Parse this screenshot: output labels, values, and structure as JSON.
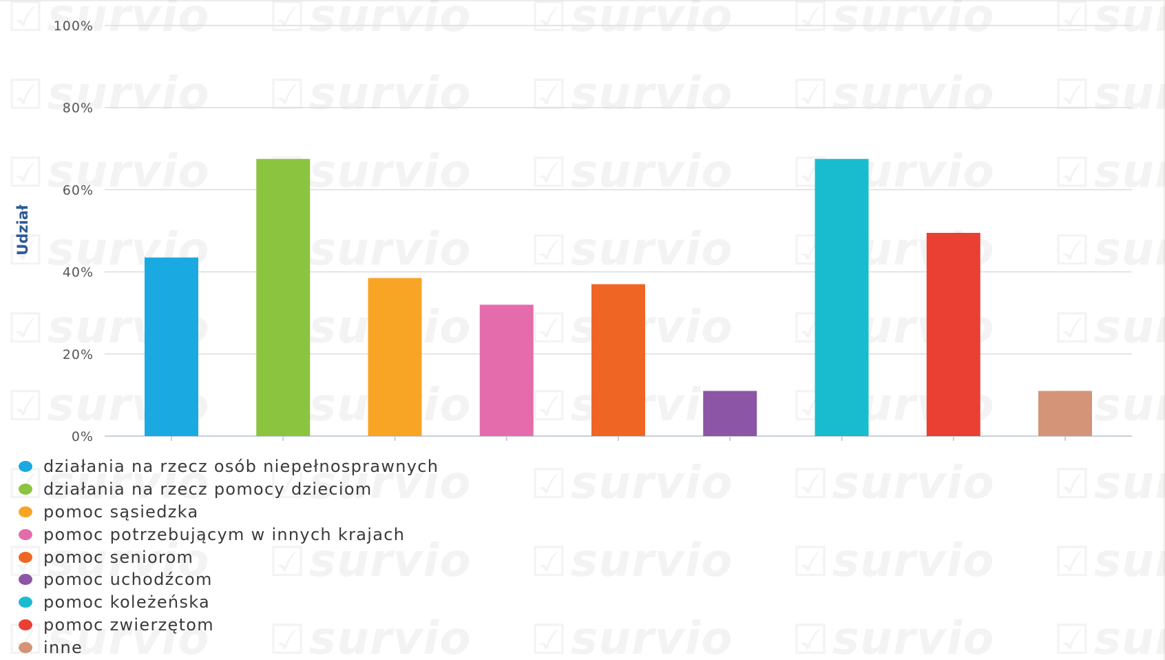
{
  "chart_data": {
    "type": "bar",
    "ylabel": "Udział",
    "xlabel": "",
    "ylim": [
      0,
      100
    ],
    "yticks": [
      "0%",
      "20%",
      "40%",
      "60%",
      "80%",
      "100%"
    ],
    "grid": true,
    "legend_placement": "bottom-left",
    "categories": [
      "działania na rzecz osób niepełnosprawnych",
      "działania na rzecz pomocy dzieciom",
      "pomoc sąsiedzka",
      "pomoc potrzebującym w innych krajach",
      "pomoc seniorom",
      "pomoc uchodźcom",
      "pomoc koleżeńska",
      "pomoc zwierzętom",
      "inne"
    ],
    "values": [
      43.5,
      67.5,
      38.5,
      32,
      37,
      11,
      67.5,
      49.5,
      11
    ],
    "colors": [
      "#1ba9e1",
      "#8bc43f",
      "#f8a525",
      "#e56cac",
      "#ef6624",
      "#8c55a5",
      "#19bccf",
      "#ea3f33",
      "#d49477"
    ]
  },
  "watermark": {
    "text": "survio",
    "icon": "check-mark-icon"
  }
}
